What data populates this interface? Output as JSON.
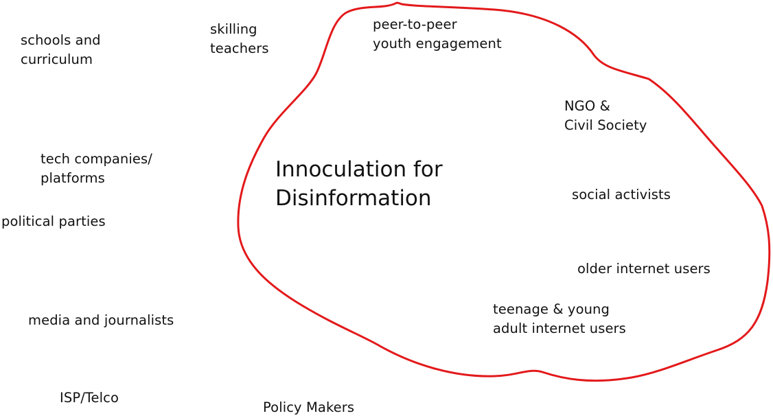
{
  "central_topic": {
    "line1": "Innoculation for",
    "line2": "Disinformation"
  },
  "inside": {
    "peer": {
      "line1": "peer-to-peer",
      "line2": "youth engagement"
    },
    "ngo": {
      "line1": "NGO &",
      "line2": "Civil Society"
    },
    "activists": "social activists",
    "older_users": "older internet users",
    "young_users": {
      "line1": "teenage & young",
      "line2": "adult internet users"
    }
  },
  "outside": {
    "schools": {
      "line1": "schools  and",
      "line2": "curriculum"
    },
    "teachers": {
      "line1": "skilling",
      "line2": "teachers"
    },
    "tech": {
      "line1": "tech companies/",
      "line2": "platforms"
    },
    "parties": "political parties",
    "media": "media and journalists",
    "isp": "ISP/Telco",
    "policy": "Policy Makers"
  },
  "colors": {
    "outline": "#e3191b",
    "text": "#111111"
  }
}
